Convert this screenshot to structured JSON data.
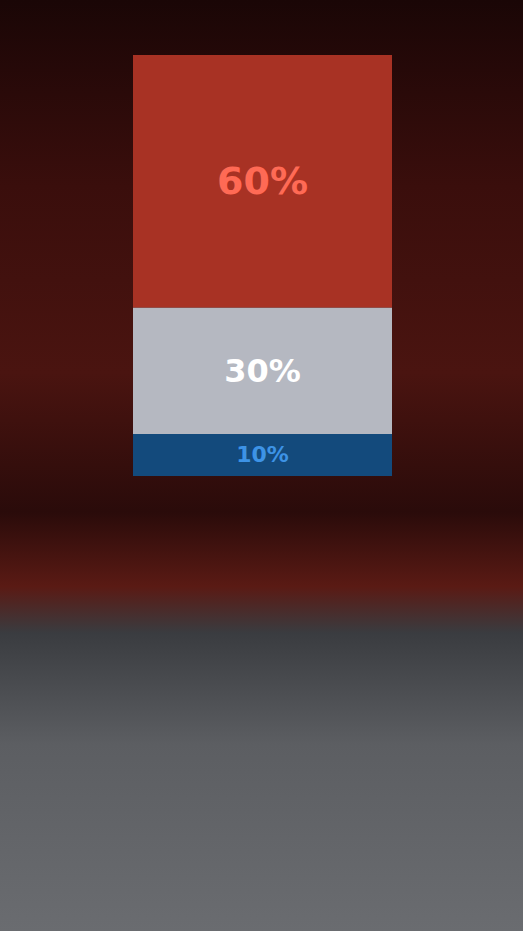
{
  "chart_data": {
    "type": "bar",
    "stacked": true,
    "categories": [
      null
    ],
    "ylim": [
      0,
      100
    ],
    "tick_labels": false,
    "grid": false,
    "data_labels": true,
    "series": [
      {
        "color": "#134a7c",
        "values": [
          10
        ],
        "value_labels": [
          "10%"
        ]
      },
      {
        "color": "#b5b8c1",
        "values": [
          30
        ],
        "value_labels": [
          "30%"
        ]
      },
      {
        "color": "#a83224",
        "values": [
          60
        ],
        "value_labels": [
          "60%"
        ]
      }
    ]
  }
}
